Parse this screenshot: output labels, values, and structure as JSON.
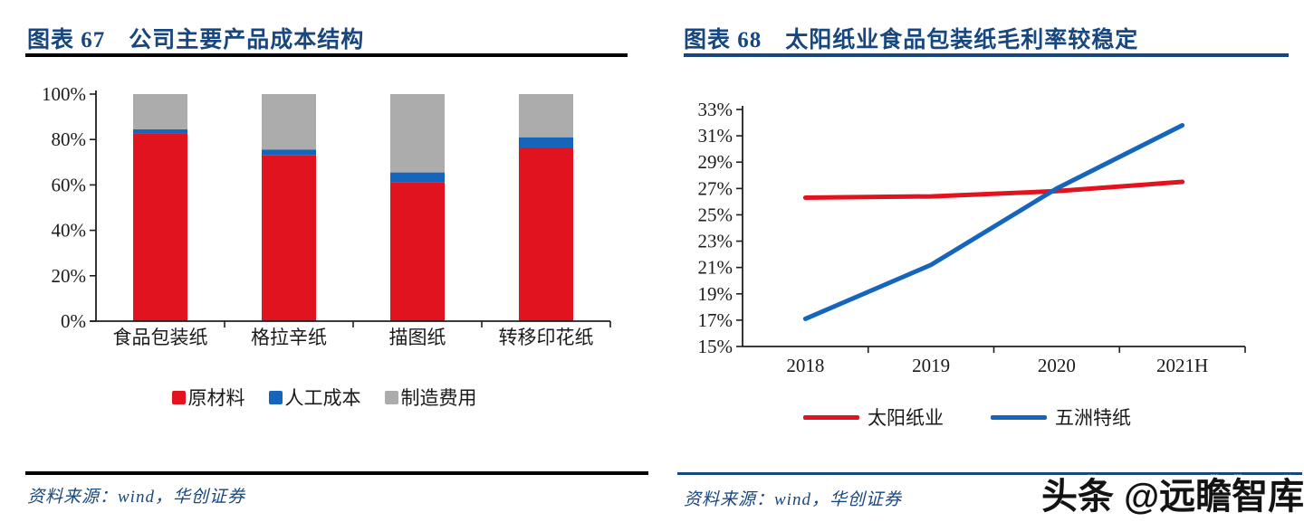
{
  "watermark": "头条 @远瞻智库",
  "left_panel": {
    "title": "图表 67　公司主要产品成本结构",
    "source": "资料来源：wind，华创证券"
  },
  "right_panel": {
    "title": "图表 68　太阳纸业食品包装纸毛利率较稳定",
    "source": "资料来源：wind，华创证券"
  },
  "colors": {
    "title_navy": "#17477e",
    "rule_black": "#000000",
    "rule_navy": "#17477e",
    "series_red": "#e0131f",
    "series_blue": "#1565bc",
    "series_gray": "#acacac",
    "axis": "#1f1f1f"
  },
  "chart_data": [
    {
      "type": "bar",
      "stacked": true,
      "title": "公司主要产品成本结构",
      "categories": [
        "食品包装纸",
        "格拉辛纸",
        "描图纸",
        "转移印花纸"
      ],
      "series": [
        {
          "name": "原材料",
          "color": "#e0131f",
          "values": [
            82.5,
            73.0,
            61.0,
            76.5
          ]
        },
        {
          "name": "人工成本",
          "color": "#1565bc",
          "values": [
            2.0,
            2.5,
            4.5,
            4.5
          ]
        },
        {
          "name": "制造费用",
          "color": "#acacac",
          "values": [
            15.5,
            24.5,
            34.5,
            19.0
          ]
        }
      ],
      "ylim": [
        0,
        100
      ],
      "ytick_step": 20,
      "ytick_suffix": "%",
      "grid": false,
      "legend_position": "bottom"
    },
    {
      "type": "line",
      "title": "太阳纸业食品包装纸毛利率较稳定",
      "x": [
        "2018",
        "2019",
        "2020",
        "2021H"
      ],
      "series": [
        {
          "name": "太阳纸业",
          "color": "#e0131f",
          "values": [
            26.3,
            26.4,
            26.8,
            27.5
          ]
        },
        {
          "name": "五洲特纸",
          "color": "#1565bc",
          "values": [
            17.1,
            21.2,
            27.0,
            31.8
          ]
        }
      ],
      "ylim": [
        15,
        33
      ],
      "ytick_step": 2,
      "ytick_suffix": "%",
      "grid": false,
      "legend_position": "bottom"
    }
  ]
}
